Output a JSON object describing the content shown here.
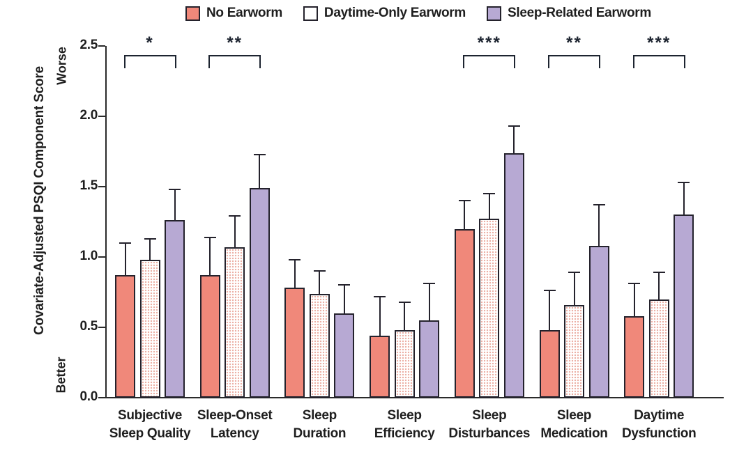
{
  "figure": {
    "y_axis_title": "Covariate-Adjusted PSQI Component Score",
    "y_axis_top_note": "Worse",
    "y_axis_bottom_note": "Better"
  },
  "colors": {
    "no_earworm_fill": "#F0887A",
    "daytime_only_dot": "#E28A7A",
    "sleep_related_fill": "#B7A9D3",
    "bar_border": "#24222C",
    "axis": "#2A2A2A",
    "significance": "#1D2430",
    "text": "#1E1E1E"
  },
  "chart_data": {
    "type": "bar",
    "title": "",
    "xlabel": "",
    "ylabel": "Covariate-Adjusted PSQI Component Score",
    "ylim": [
      0,
      2.5
    ],
    "ytick_labels": [
      "0.0",
      "0.5",
      "1.0",
      "1.5",
      "2.0",
      "2.5"
    ],
    "grid": false,
    "legend_position": "top",
    "error_bars": "upper-only",
    "categories": [
      "Subjective Sleep Quality",
      "Sleep-Onset Latency",
      "Sleep Duration",
      "Sleep Efficiency",
      "Sleep Disturbances",
      "Sleep Medication",
      "Daytime Dysfunction"
    ],
    "categories_lines": [
      [
        "Subjective",
        "Sleep Quality"
      ],
      [
        "Sleep-Onset",
        "Latency"
      ],
      [
        "Sleep",
        "Duration"
      ],
      [
        "Sleep",
        "Efficiency"
      ],
      [
        "Sleep",
        "Disturbances"
      ],
      [
        "Sleep",
        "Medication"
      ],
      [
        "Daytime",
        "Dysfunction"
      ]
    ],
    "series": [
      {
        "name": "No Earworm",
        "fill": "solid",
        "color": "#F0887A",
        "values": [
          0.87,
          0.87,
          0.78,
          0.44,
          1.2,
          0.48,
          0.58
        ],
        "upper_errors": [
          0.23,
          0.27,
          0.2,
          0.28,
          0.2,
          0.28,
          0.23
        ]
      },
      {
        "name": "Daytime-Only Earworm",
        "fill": "dotted",
        "color": "#FFFFFF",
        "values": [
          0.98,
          1.07,
          0.74,
          0.48,
          1.27,
          0.66,
          0.7
        ],
        "upper_errors": [
          0.15,
          0.22,
          0.16,
          0.2,
          0.18,
          0.23,
          0.19
        ]
      },
      {
        "name": "Sleep-Related Earworm",
        "fill": "solid",
        "color": "#B7A9D3",
        "values": [
          1.26,
          1.49,
          0.6,
          0.55,
          1.74,
          1.08,
          1.3
        ],
        "upper_errors": [
          0.22,
          0.24,
          0.2,
          0.26,
          0.19,
          0.29,
          0.23
        ]
      }
    ],
    "significance": [
      {
        "category_index": 0,
        "label": "*"
      },
      {
        "category_index": 1,
        "label": "**"
      },
      {
        "category_index": 4,
        "label": "***"
      },
      {
        "category_index": 5,
        "label": "**"
      },
      {
        "category_index": 6,
        "label": "***"
      }
    ]
  }
}
